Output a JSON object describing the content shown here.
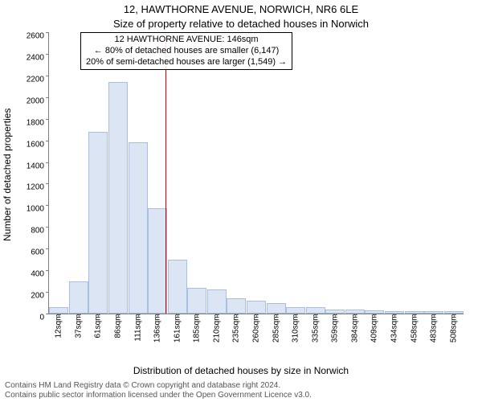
{
  "chart": {
    "type": "histogram",
    "title_main": "12, HAWTHORNE AVENUE, NORWICH, NR6 6LE",
    "title_sub": "Size of property relative to detached houses in Norwich",
    "ylabel": "Number of detached properties",
    "xlabel": "Distribution of detached houses by size in Norwich",
    "title_fontsize": 13,
    "label_fontsize": 12,
    "tick_fontsize": 10,
    "background_color": "#ffffff",
    "bar_fill": "#dbe5f3",
    "bar_stroke": "#a8bfe0",
    "axis_color": "#808080",
    "marker_color": "#d00000",
    "ylim": [
      0,
      2600
    ],
    "ytick_step": 200,
    "yticks": [
      0,
      200,
      400,
      600,
      800,
      1000,
      1200,
      1400,
      1600,
      1800,
      2000,
      2200,
      2400,
      2600
    ],
    "marker_x_index": 5.4,
    "x_categories": [
      "12sqm",
      "37sqm",
      "61sqm",
      "86sqm",
      "111sqm",
      "136sqm",
      "161sqm",
      "185sqm",
      "210sqm",
      "235sqm",
      "260sqm",
      "285sqm",
      "310sqm",
      "335sqm",
      "359sqm",
      "384sqm",
      "409sqm",
      "434sqm",
      "458sqm",
      "483sqm",
      "508sqm"
    ],
    "values": [
      60,
      300,
      1680,
      2140,
      1580,
      970,
      500,
      240,
      220,
      140,
      120,
      100,
      60,
      60,
      40,
      40,
      30,
      20,
      20,
      20,
      20
    ],
    "bar_width_ratio": 0.98,
    "annotation": {
      "line1": "12 HAWTHORNE AVENUE: 146sqm",
      "line2": "← 80% of detached houses are smaller (6,147)",
      "line3": "20% of semi-detached houses are larger (1,549) →"
    },
    "footer_line1": "Contains HM Land Registry data © Crown copyright and database right 2024.",
    "footer_line2": "Contains public sector information licensed under the Open Government Licence v3.0."
  }
}
